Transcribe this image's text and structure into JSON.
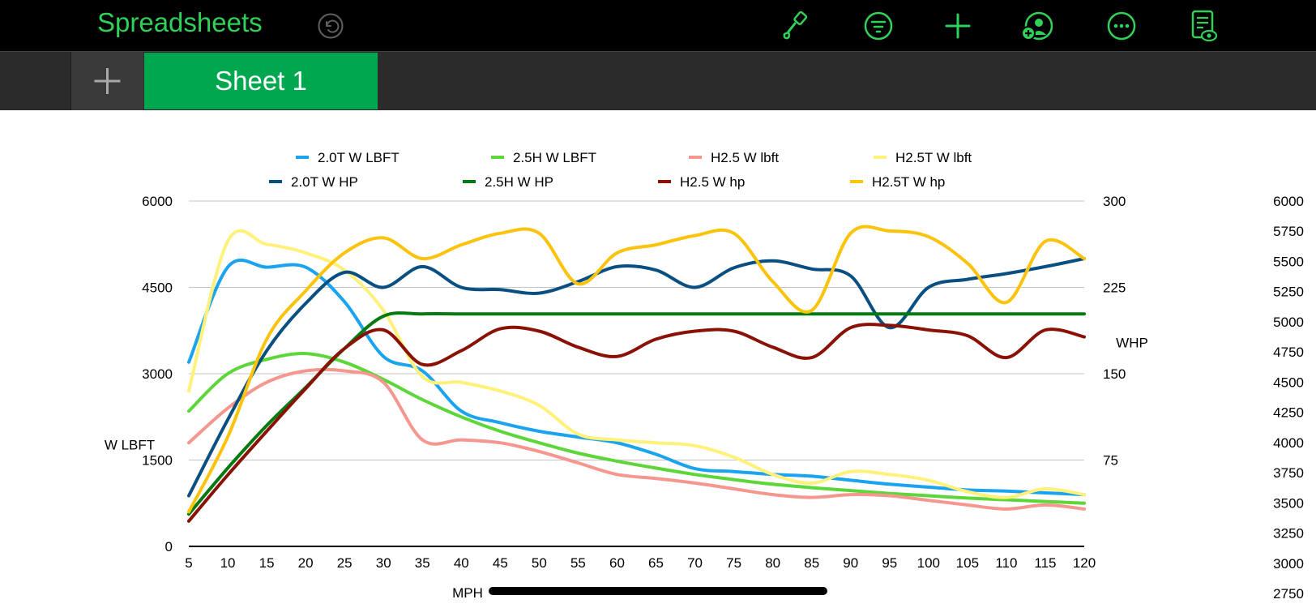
{
  "app": {
    "title": "Spreadsheets"
  },
  "toolbar": {
    "icons": [
      "undo-icon",
      "paintbrush-icon",
      "filter-icon",
      "plus-icon",
      "collaborate-icon",
      "more-icon",
      "document-view-icon"
    ]
  },
  "sheets": {
    "add_icon": "plus-icon",
    "tabs": [
      {
        "label": "Sheet 1",
        "active": true
      }
    ]
  },
  "colors": {
    "accent": "#30d158",
    "tab_active": "#00a74f"
  },
  "chart_data": {
    "type": "line",
    "title": "",
    "xlabel": "MPH",
    "ylabel": "W LBFT",
    "y2label": "WHP",
    "x": [
      5,
      10,
      15,
      20,
      25,
      30,
      35,
      40,
      45,
      50,
      55,
      60,
      65,
      70,
      75,
      80,
      85,
      90,
      95,
      100,
      105,
      110,
      115,
      120
    ],
    "xticks": [
      "5",
      "10",
      "15",
      "20",
      "25",
      "30",
      "35",
      "40",
      "45",
      "50",
      "55",
      "60",
      "65",
      "70",
      "75",
      "80",
      "85",
      "90",
      "95",
      "100",
      "105",
      "110",
      "115",
      "120"
    ],
    "ylim": [
      0,
      6000
    ],
    "yticks": [
      "0",
      "1500",
      "3000",
      "4500",
      "6000"
    ],
    "y2lim": [
      0,
      300
    ],
    "y2ticks": [
      "75",
      "150",
      "225",
      "300"
    ],
    "y3lim": [
      2750,
      6000
    ],
    "y3ticks": [
      "2750",
      "3000",
      "3250",
      "3500",
      "3750",
      "4000",
      "4250",
      "4500",
      "4750",
      "5000",
      "5250",
      "5500",
      "5750",
      "6000"
    ],
    "grid": true,
    "legend_position": "top",
    "series": [
      {
        "name": "2.0T W LBFT",
        "axis": "left",
        "color": "#1aa3ee",
        "values": [
          3200,
          4850,
          4850,
          4850,
          4250,
          3300,
          3050,
          2350,
          2150,
          2000,
          1900,
          1800,
          1600,
          1350,
          1300,
          1250,
          1220,
          1150,
          1080,
          1030,
          980,
          960,
          930,
          900
        ]
      },
      {
        "name": "2.5H W LBFT",
        "axis": "left",
        "color": "#5cd639",
        "values": [
          2350,
          3000,
          3250,
          3350,
          3200,
          2900,
          2550,
          2250,
          2000,
          1800,
          1620,
          1480,
          1360,
          1250,
          1160,
          1080,
          1020,
          970,
          920,
          880,
          840,
          810,
          780,
          750
        ]
      },
      {
        "name": "H2.5 W lbft",
        "axis": "left",
        "color": "#f5968f",
        "values": [
          1800,
          2400,
          2850,
          3050,
          3050,
          2850,
          1850,
          1850,
          1800,
          1650,
          1450,
          1250,
          1180,
          1100,
          1000,
          900,
          850,
          900,
          880,
          800,
          720,
          650,
          720,
          650
        ]
      },
      {
        "name": "H2.5T W lbft",
        "axis": "left",
        "color": "#fff17a",
        "values": [
          2700,
          5300,
          5250,
          5100,
          4800,
          4100,
          2950,
          2850,
          2700,
          2450,
          1950,
          1850,
          1800,
          1750,
          1550,
          1250,
          1100,
          1300,
          1250,
          1150,
          950,
          850,
          1000,
          900
        ]
      },
      {
        "name": "2.0T W HP",
        "axis": "right",
        "color": "#0a4f82",
        "values": [
          44,
          110,
          170,
          211,
          238,
          225,
          243,
          225,
          223,
          220,
          230,
          243,
          240,
          225,
          242,
          248,
          241,
          235,
          190,
          225,
          232,
          237,
          243,
          250
        ]
      },
      {
        "name": "2.5H W HP",
        "axis": "right",
        "color": "#047a11",
        "values": [
          28,
          68,
          105,
          138,
          172,
          200,
          202,
          202,
          202,
          202,
          202,
          202,
          202,
          202,
          202,
          202,
          202,
          202,
          202,
          202,
          202,
          202,
          202,
          202
        ]
      },
      {
        "name": "H2.5 W hp",
        "axis": "right",
        "color": "#8a1105",
        "values": [
          22,
          62,
          100,
          137,
          172,
          188,
          158,
          170,
          189,
          187,
          173,
          165,
          180,
          187,
          187,
          173,
          164,
          190,
          192,
          188,
          183,
          164,
          188,
          182
        ]
      },
      {
        "name": "H2.5T W hp",
        "axis": "right",
        "color": "#fcc30c",
        "values": [
          30,
          95,
          180,
          222,
          255,
          268,
          250,
          262,
          272,
          272,
          228,
          255,
          262,
          270,
          272,
          230,
          205,
          272,
          274,
          269,
          246,
          212,
          265,
          250
        ]
      }
    ]
  }
}
